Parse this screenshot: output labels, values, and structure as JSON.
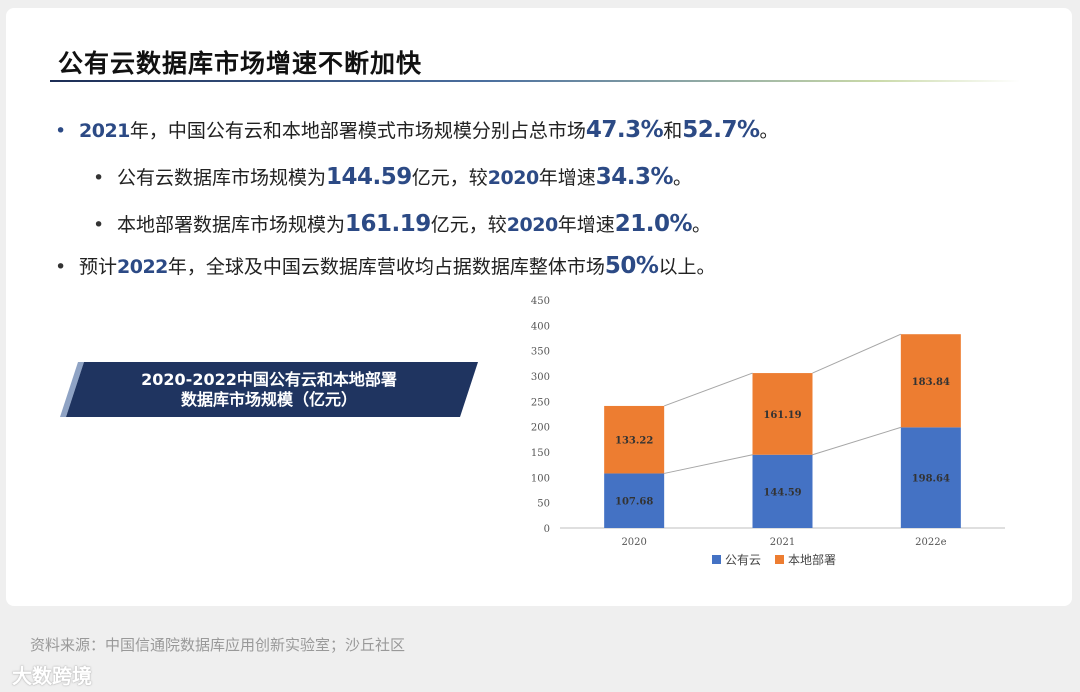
{
  "title": "公有云数据库市场增速不断加快",
  "bullets": {
    "b1": {
      "y1": "2021",
      "t1": "年，中国公有云和本地部署模式市场规模分别占总市场",
      "v1": "47.3%",
      "t2": "和",
      "v2": "52.7%",
      "t3": "。"
    },
    "b2": {
      "t1": "公有云数据库市场规模为",
      "v1": "144.59",
      "t2": "亿元，较",
      "y1": "2020",
      "t3": "年增速",
      "v2": "34.3%",
      "t4": "。"
    },
    "b3": {
      "t1": "本地部署数据库市场规模为",
      "v1": "161.19",
      "t2": "亿元，较",
      "y1": "2020",
      "t3": "年增速",
      "v2": "21.0%",
      "t4": "。"
    },
    "b4": {
      "t1": "预计",
      "y1": "2022",
      "t2": "年，全球及中国云数据库营收均占据数据库整体市场",
      "v1": "50%",
      "t3": "以上。"
    }
  },
  "bullet_glyph": "•",
  "banner": {
    "line1": "2020-2022中国公有云和本地部署",
    "line2": "数据库市场规模（亿元）"
  },
  "chart_data": {
    "type": "bar",
    "stacked": true,
    "categories": [
      "2020",
      "2021",
      "2022e"
    ],
    "series": [
      {
        "name": "公有云",
        "values": [
          107.68,
          144.59,
          198.64
        ],
        "color": "#4472c4"
      },
      {
        "name": "本地部署",
        "values": [
          133.22,
          161.19,
          183.84
        ],
        "color": "#ed7d31"
      }
    ],
    "ylim": [
      0,
      450
    ],
    "yticks": [
      0,
      50,
      100,
      150,
      200,
      250,
      300,
      350,
      400,
      450
    ],
    "legend": "bottom",
    "connector_lines": true,
    "grid": false
  },
  "source": "资料来源：中国信通院数据库应用创新实验室；沙丘社区",
  "logo": "大数跨境"
}
